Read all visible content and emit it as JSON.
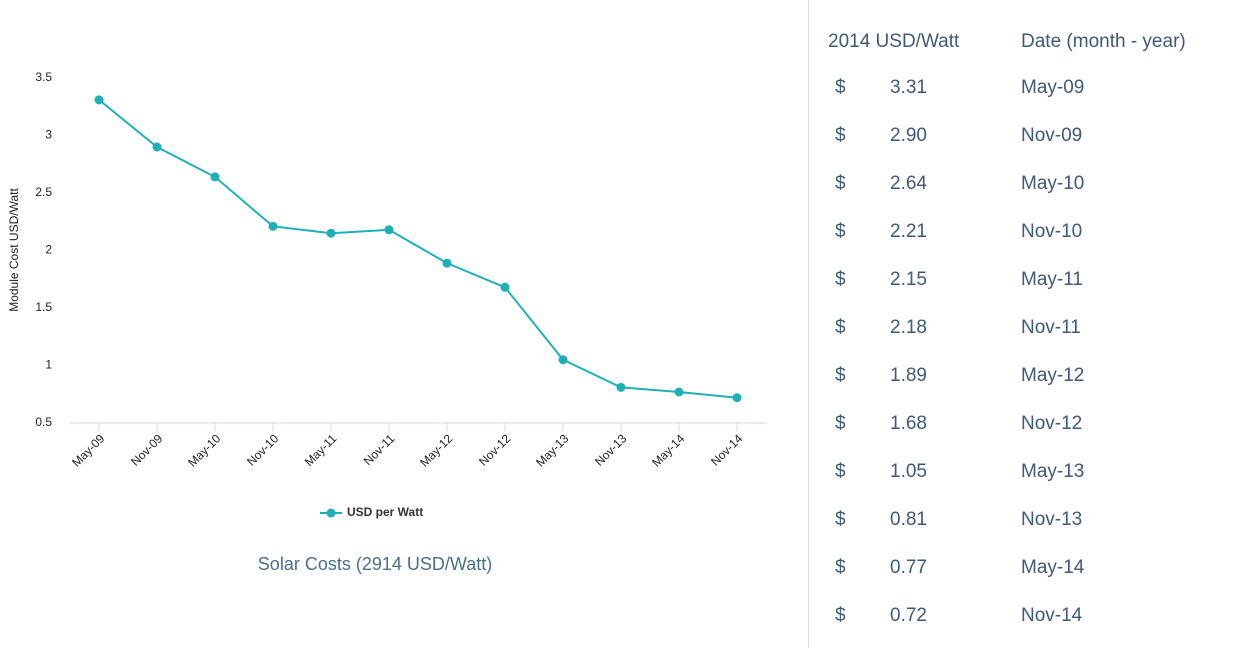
{
  "chart_data": {
    "type": "line",
    "caption": "Solar Costs (2914 USD/Watt)",
    "y_label": "Module Cost USD/Watt",
    "categories": [
      "May-09",
      "Nov-09",
      "May-10",
      "Nov-10",
      "May-11",
      "Nov-11",
      "May-12",
      "Nov-12",
      "May-13",
      "Nov-13",
      "May-14",
      "Nov-14"
    ],
    "series": [
      {
        "name": "USD per Watt",
        "color": "#1fb0b7",
        "values": [
          3.31,
          2.9,
          2.64,
          2.21,
          2.15,
          2.18,
          1.89,
          1.68,
          1.05,
          0.81,
          0.77,
          0.72
        ]
      }
    ],
    "ylim": [
      0.5,
      3.5
    ],
    "yticks": [
      0.5,
      1,
      1.5,
      2,
      2.5,
      3,
      3.5
    ],
    "grid": false,
    "legend": "bottom"
  },
  "table": {
    "headers": [
      "2014 USD/Watt",
      "Date (month - year)"
    ],
    "rows": [
      [
        "$",
        "3.31",
        "May-09"
      ],
      [
        "$",
        "2.90",
        "Nov-09"
      ],
      [
        "$",
        "2.64",
        "May-10"
      ],
      [
        "$",
        "2.21",
        "Nov-10"
      ],
      [
        "$",
        "2.15",
        "May-11"
      ],
      [
        "$",
        "2.18",
        "Nov-11"
      ],
      [
        "$",
        "1.89",
        "May-12"
      ],
      [
        "$",
        "1.68",
        "Nov-12"
      ],
      [
        "$",
        "1.05",
        "May-13"
      ],
      [
        "$",
        "0.81",
        "Nov-13"
      ],
      [
        "$",
        "0.77",
        "May-14"
      ],
      [
        "$",
        "0.72",
        "Nov-14"
      ]
    ]
  }
}
